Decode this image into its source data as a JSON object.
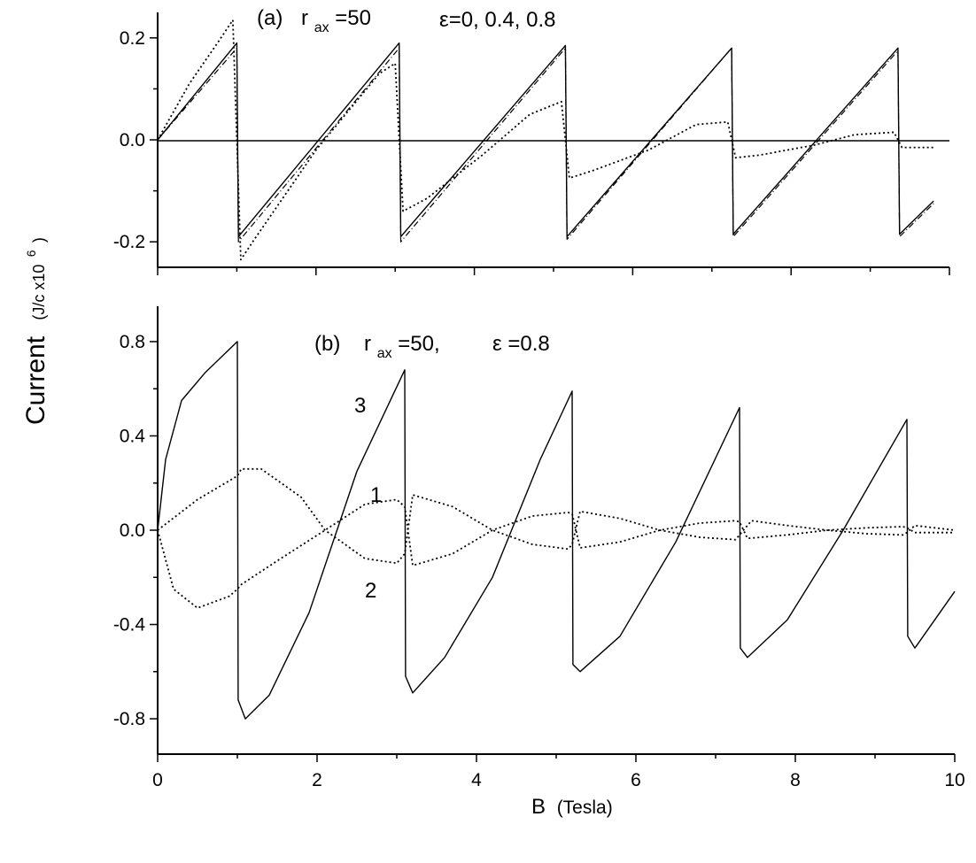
{
  "figure": {
    "ylabel_main": "Current",
    "ylabel_units": "(J/c x10",
    "ylabel_units_exp": "6",
    "ylabel_units_close": ")",
    "xlabel_main": "B",
    "xlabel_units": "(Tesla)"
  },
  "chart_data": [
    {
      "type": "line",
      "panel": "a",
      "annotation": {
        "panel_tag": "(a)",
        "r_main": "r",
        "r_sub": "ax",
        "r_val": "=50",
        "eps_text": "ε=0,  0.4,  0.8"
      },
      "xlim": [
        0,
        10
      ],
      "ylim": [
        -0.25,
        0.25
      ],
      "yticks": [
        "-0.2",
        "0.0",
        "0.2"
      ],
      "ytick_values": [
        -0.2,
        0.0,
        0.2
      ],
      "xticks_labeled": false,
      "zero_line": true,
      "series": [
        {
          "style": "solid",
          "x": [
            0,
            1.0,
            1.02,
            3.05,
            3.07,
            5.15,
            5.17,
            7.25,
            7.27,
            9.35,
            9.37,
            9.8
          ],
          "y": [
            0,
            0.19,
            -0.19,
            0.19,
            -0.19,
            0.185,
            -0.19,
            0.18,
            -0.185,
            0.18,
            -0.185,
            -0.12
          ]
        },
        {
          "style": "dashdot",
          "x": [
            0,
            1.0,
            1.02,
            3.05,
            3.07,
            5.15,
            5.17,
            7.25,
            7.27,
            9.35,
            9.37,
            9.8
          ],
          "y": [
            0,
            0.18,
            -0.2,
            0.18,
            -0.2,
            0.18,
            -0.195,
            0.18,
            -0.19,
            0.175,
            -0.19,
            -0.125
          ]
        },
        {
          "style": "dotted",
          "x": [
            0,
            0.4,
            0.8,
            0.95,
            1.05,
            1.2,
            2.0,
            2.8,
            3.0,
            3.1,
            3.4,
            4.1,
            4.7,
            5.1,
            5.2,
            5.5,
            6.2,
            6.8,
            7.2,
            7.3,
            7.6,
            8.3,
            8.8,
            9.3,
            9.4,
            9.8
          ],
          "y": [
            0,
            0.11,
            0.2,
            0.235,
            -0.235,
            -0.2,
            -0.02,
            0.13,
            0.15,
            -0.14,
            -0.115,
            -0.03,
            0.05,
            0.075,
            -0.075,
            -0.06,
            -0.02,
            0.03,
            0.035,
            -0.035,
            -0.03,
            -0.01,
            0.01,
            0.015,
            -0.015,
            -0.015
          ]
        }
      ]
    },
    {
      "type": "line",
      "panel": "b",
      "annotation": {
        "panel_tag": "(b)",
        "r_main": "r",
        "r_sub": "ax",
        "r_val": "=50,",
        "eps_text": "ε =0.8"
      },
      "curve_labels": [
        "3",
        "1",
        "2"
      ],
      "xlim": [
        0,
        10
      ],
      "ylim": [
        -0.95,
        0.95
      ],
      "yticks": [
        "-0.8",
        "-0.4",
        "0.0",
        "0.4",
        "0.8"
      ],
      "ytick_values": [
        -0.8,
        -0.4,
        0.0,
        0.4,
        0.8
      ],
      "xticks": [
        "0",
        "2",
        "4",
        "6",
        "8",
        "10"
      ],
      "xtick_values": [
        0,
        2,
        4,
        6,
        8,
        10
      ],
      "series": [
        {
          "name": "3",
          "style": "solid",
          "x": [
            0,
            0.1,
            0.3,
            0.6,
            1.0,
            1.01,
            1.1,
            1.4,
            1.9,
            2.5,
            3.1,
            3.11,
            3.2,
            3.6,
            4.2,
            4.8,
            5.2,
            5.21,
            5.3,
            5.8,
            6.5,
            7.3,
            7.31,
            7.4,
            7.9,
            8.6,
            9.4,
            9.41,
            9.5,
            10.0
          ],
          "y": [
            0,
            0.3,
            0.55,
            0.67,
            0.8,
            -0.72,
            -0.8,
            -0.7,
            -0.35,
            0.25,
            0.68,
            -0.62,
            -0.69,
            -0.54,
            -0.2,
            0.3,
            0.59,
            -0.57,
            -0.6,
            -0.45,
            -0.05,
            0.52,
            -0.5,
            -0.54,
            -0.38,
            0.0,
            0.47,
            -0.45,
            -0.5,
            -0.26
          ]
        },
        {
          "name": "1",
          "style": "dotted",
          "x": [
            0,
            0.5,
            0.95,
            1.0,
            1.05,
            1.3,
            1.8,
            2.1,
            2.6,
            3.0,
            3.1,
            3.2,
            3.7,
            4.2,
            4.7,
            5.15,
            5.2,
            5.3,
            5.8,
            6.3,
            6.8,
            7.25,
            7.3,
            7.45,
            7.9,
            8.4,
            8.9,
            9.35,
            9.4,
            9.5,
            10.0
          ],
          "y": [
            0,
            0.13,
            0.22,
            0.23,
            0.26,
            0.26,
            0.14,
            0.0,
            -0.12,
            -0.14,
            -0.1,
            0.15,
            0.1,
            0.0,
            -0.06,
            -0.08,
            -0.06,
            0.08,
            0.05,
            0.0,
            -0.03,
            -0.04,
            -0.02,
            0.04,
            0.02,
            0.0,
            -0.015,
            -0.02,
            -0.01,
            0.02,
            0.0
          ]
        },
        {
          "name": "2",
          "style": "dotted",
          "x": [
            0,
            0.2,
            0.5,
            0.9,
            1.0,
            1.05,
            1.5,
            2.1,
            2.6,
            3.0,
            3.1,
            3.2,
            3.7,
            4.2,
            4.7,
            5.15,
            5.2,
            5.3,
            5.8,
            6.3,
            6.8,
            7.25,
            7.3,
            7.4,
            7.9,
            8.4,
            8.9,
            9.35,
            9.4,
            9.5,
            10.0
          ],
          "y": [
            0,
            -0.25,
            -0.33,
            -0.28,
            -0.25,
            -0.23,
            -0.13,
            0.0,
            0.11,
            0.13,
            0.1,
            -0.15,
            -0.1,
            0.0,
            0.06,
            0.075,
            0.07,
            -0.075,
            -0.05,
            0.0,
            0.03,
            0.04,
            0.035,
            -0.035,
            -0.02,
            0.0,
            0.01,
            0.015,
            0.01,
            -0.01,
            -0.01
          ]
        }
      ]
    }
  ]
}
